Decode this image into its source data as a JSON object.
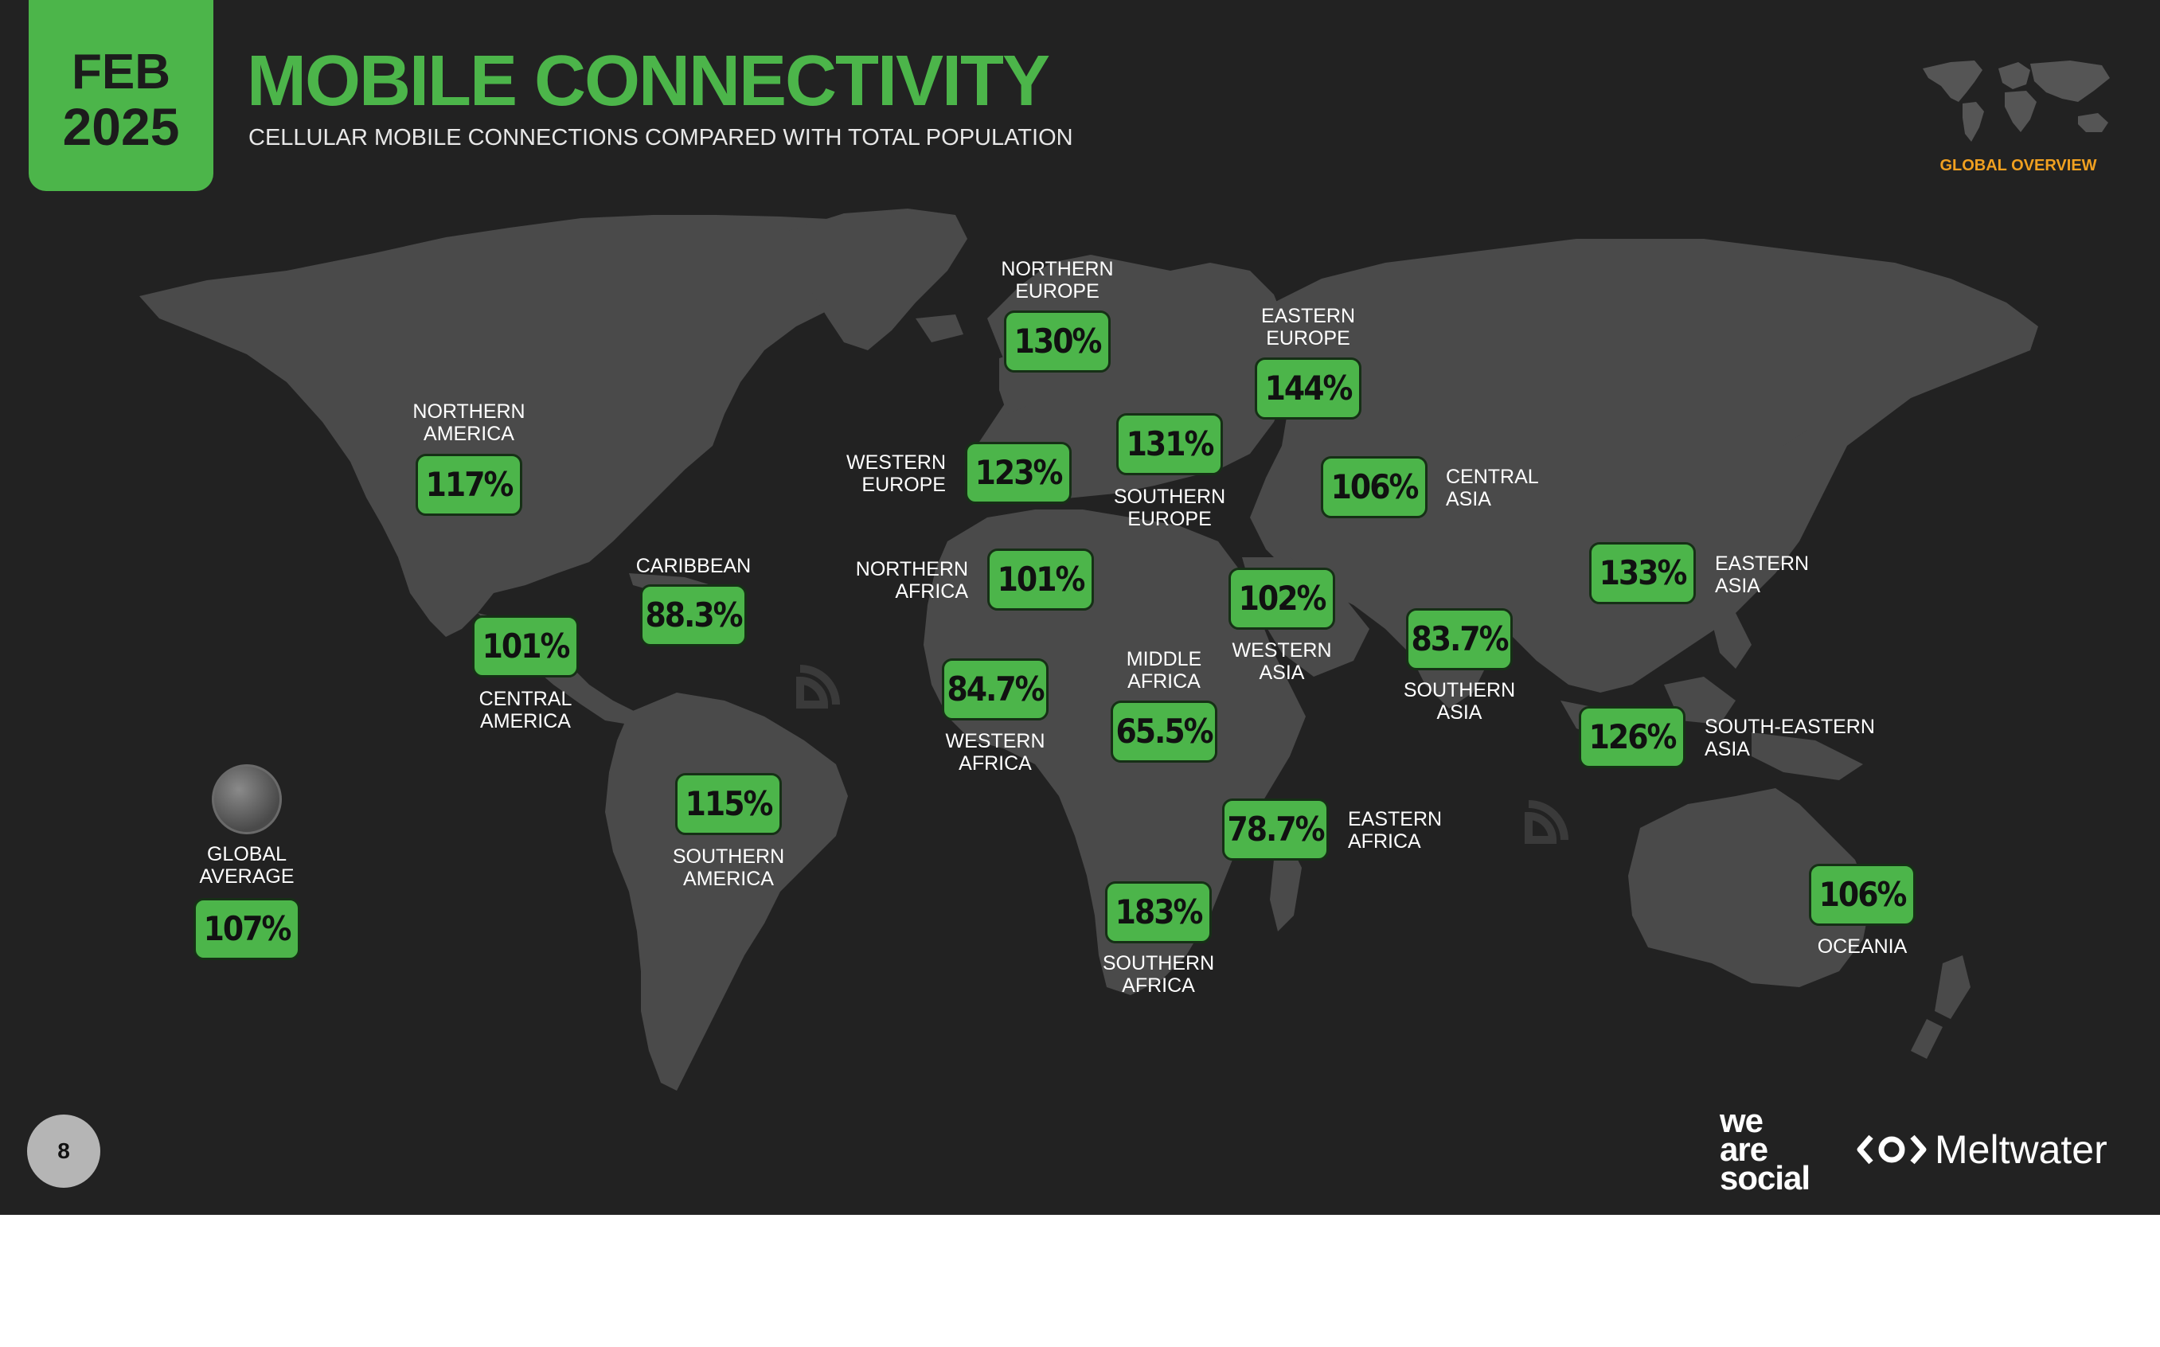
{
  "header": {
    "month": "FEB",
    "year": "2025",
    "title": "MOBILE CONNECTIVITY",
    "subtitle": "CELLULAR MOBILE CONNECTIONS COMPARED WITH TOTAL POPULATION",
    "section": "GLOBAL OVERVIEW"
  },
  "colors": {
    "accent": "#4cb54a",
    "background": "#222222",
    "land": "#4a4a4a",
    "section_tag": "#f0a020"
  },
  "regions": {
    "northern_america": {
      "label": "NORTHERN\nAMERICA",
      "value": "117%"
    },
    "central_america": {
      "label": "CENTRAL\nAMERICA",
      "value": "101%"
    },
    "caribbean": {
      "label": "CARIBBEAN",
      "value": "88.3%"
    },
    "southern_america": {
      "label": "SOUTHERN\nAMERICA",
      "value": "115%"
    },
    "northern_europe": {
      "label": "NORTHERN\nEUROPE",
      "value": "130%"
    },
    "western_europe": {
      "label": "WESTERN\nEUROPE",
      "value": "123%"
    },
    "southern_europe": {
      "label": "SOUTHERN\nEUROPE",
      "value": "131%"
    },
    "eastern_europe": {
      "label": "EASTERN\nEUROPE",
      "value": "144%"
    },
    "central_asia": {
      "label": "CENTRAL\nASIA",
      "value": "106%"
    },
    "northern_africa": {
      "label": "NORTHERN\nAFRICA",
      "value": "101%"
    },
    "western_asia": {
      "label": "WESTERN\nASIA",
      "value": "102%"
    },
    "western_africa": {
      "label": "WESTERN\nAFRICA",
      "value": "84.7%"
    },
    "middle_africa": {
      "label": "MIDDLE\nAFRICA",
      "value": "65.5%"
    },
    "eastern_africa": {
      "label": "EASTERN\nAFRICA",
      "value": "78.7%"
    },
    "southern_africa": {
      "label": "SOUTHERN\nAFRICA",
      "value": "183%"
    },
    "southern_asia": {
      "label": "SOUTHERN\nASIA",
      "value": "83.7%"
    },
    "eastern_asia": {
      "label": "EASTERN\nASIA",
      "value": "133%"
    },
    "south_eastern_asia": {
      "label": "SOUTH-EASTERN\nASIA",
      "value": "126%"
    },
    "oceania": {
      "label": "OCEANIA",
      "value": "106%"
    },
    "global_average": {
      "label": "GLOBAL\nAVERAGE",
      "value": "107%"
    }
  },
  "footer": {
    "page_number": "8",
    "logo_we_are_social": "we\nare\nsocial",
    "logo_meltwater": "Meltwater"
  }
}
